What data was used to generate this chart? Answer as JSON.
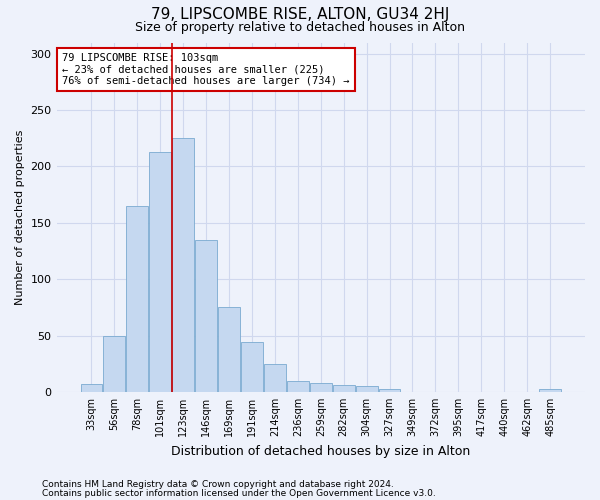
{
  "title": "79, LIPSCOMBE RISE, ALTON, GU34 2HJ",
  "subtitle": "Size of property relative to detached houses in Alton",
  "xlabel": "Distribution of detached houses by size in Alton",
  "ylabel": "Number of detached properties",
  "footnote1": "Contains HM Land Registry data © Crown copyright and database right 2024.",
  "footnote2": "Contains public sector information licensed under the Open Government Licence v3.0.",
  "annotation_line1": "79 LIPSCOMBE RISE: 103sqm",
  "annotation_line2": "← 23% of detached houses are smaller (225)",
  "annotation_line3": "76% of semi-detached houses are larger (734) →",
  "bar_labels": [
    "33sqm",
    "56sqm",
    "78sqm",
    "101sqm",
    "123sqm",
    "146sqm",
    "169sqm",
    "191sqm",
    "214sqm",
    "236sqm",
    "259sqm",
    "282sqm",
    "304sqm",
    "327sqm",
    "349sqm",
    "372sqm",
    "395sqm",
    "417sqm",
    "440sqm",
    "462sqm",
    "485sqm"
  ],
  "bar_values": [
    7,
    50,
    165,
    213,
    225,
    135,
    75,
    44,
    25,
    10,
    8,
    6,
    5,
    3,
    0,
    0,
    0,
    0,
    0,
    0,
    3
  ],
  "bar_color": "#c5d8f0",
  "bar_edge_color": "#7aaad0",
  "vline_color": "#cc0000",
  "vline_x": 3.5,
  "annotation_box_facecolor": "#ffffff",
  "annotation_box_edgecolor": "#cc0000",
  "ylim": [
    0,
    310
  ],
  "yticks": [
    0,
    50,
    100,
    150,
    200,
    250,
    300
  ],
  "background_color": "#eef2fb",
  "grid_color": "#d0d8ee",
  "title_fontsize": 11,
  "subtitle_fontsize": 9,
  "ylabel_fontsize": 8,
  "xlabel_fontsize": 9,
  "tick_fontsize": 7,
  "annotation_fontsize": 7.5,
  "footnote_fontsize": 6.5
}
